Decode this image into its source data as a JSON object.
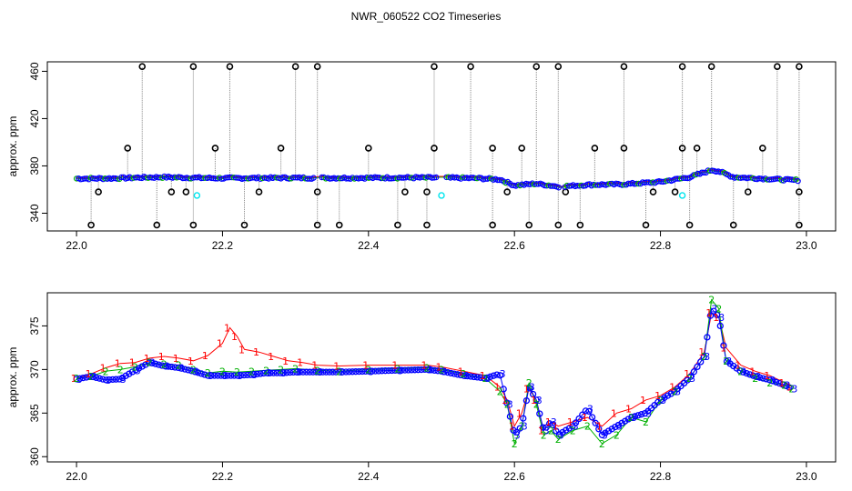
{
  "figure_title": "NWR_060522  CO2 Timeseries",
  "chart_data": [
    {
      "type": "scatter",
      "panel": "top",
      "title": "NWR_060522  CO2 Timeseries",
      "xlabel": "",
      "ylabel": "approx. ppm",
      "xlim": [
        21.96,
        23.04
      ],
      "ylim": [
        325,
        468
      ],
      "xticks": [
        22.0,
        22.2,
        22.4,
        22.6,
        22.8,
        23.0
      ],
      "xtick_labels": [
        "22.0",
        "22.2",
        "22.4",
        "22.6",
        "22.8",
        "23.0"
      ],
      "yticks": [
        340,
        380,
        420,
        460
      ],
      "ytick_labels": [
        "340",
        "380",
        "420",
        "460"
      ],
      "grid": false,
      "series_colors": {
        "black_markers": "#000000",
        "cyan_markers": "#00e5ee",
        "line_1": "#ff0000",
        "line_2": "#00b000",
        "line_3": "#0000ff",
        "spike_lines": "#888888"
      },
      "baseline_x": [
        22.0,
        22.05,
        22.09,
        22.12,
        22.16,
        22.2,
        22.25,
        22.3,
        22.33,
        22.4,
        22.45,
        22.5,
        22.55,
        22.58,
        22.6,
        22.63,
        22.66,
        22.7,
        22.75,
        22.8,
        22.84,
        22.87,
        22.88,
        22.9,
        22.95,
        22.98
      ],
      "baseline_y": [
        369.3,
        369.5,
        370.2,
        370.5,
        370.0,
        369.6,
        369.8,
        369.9,
        369.8,
        369.9,
        370.1,
        370.0,
        369.6,
        368.5,
        363.5,
        365.0,
        362.5,
        364.0,
        364.5,
        366.5,
        370.5,
        376.5,
        375.5,
        370.5,
        369.0,
        368.0
      ],
      "outlier_high_x": [
        22.09,
        22.16,
        22.21,
        22.3,
        22.33,
        22.49,
        22.54,
        22.63,
        22.66,
        22.75,
        22.83,
        22.87,
        22.96,
        22.99
      ],
      "outlier_high_y": [
        464,
        464,
        464,
        464,
        464,
        464,
        464,
        464,
        464,
        464,
        464,
        464,
        464,
        464
      ],
      "outlier_mid_x": [
        22.07,
        22.19,
        22.28,
        22.4,
        22.49,
        22.57,
        22.61,
        22.71,
        22.75,
        22.83,
        22.85,
        22.94
      ],
      "outlier_mid_y": [
        395,
        395,
        395,
        395,
        395,
        395,
        395,
        395,
        395,
        395,
        395,
        395
      ],
      "outlier_low_x": [
        22.03,
        22.13,
        22.15,
        22.25,
        22.33,
        22.45,
        22.48,
        22.59,
        22.67,
        22.79,
        22.82,
        22.92,
        22.99
      ],
      "outlier_low_y": [
        358,
        358,
        358,
        358,
        358,
        358,
        358,
        358,
        358,
        358,
        358,
        358,
        358
      ],
      "outlier_bottom_x": [
        22.02,
        22.11,
        22.16,
        22.23,
        22.33,
        22.36,
        22.44,
        22.48,
        22.57,
        22.62,
        22.66,
        22.69,
        22.78,
        22.84,
        22.9,
        22.99
      ],
      "outlier_bottom_y": [
        330,
        330,
        330,
        330,
        330,
        330,
        330,
        330,
        330,
        330,
        330,
        330,
        330,
        330,
        330,
        330
      ],
      "cyan_x": [
        22.165,
        22.5,
        22.83
      ],
      "cyan_y": [
        355,
        355,
        355
      ]
    },
    {
      "type": "line",
      "panel": "bottom",
      "title": "",
      "xlabel": "",
      "ylabel": "approx. ppm",
      "xlim": [
        21.96,
        23.04
      ],
      "ylim": [
        359.4,
        378.8
      ],
      "xticks": [
        22.0,
        22.2,
        22.4,
        22.6,
        22.8,
        23.0
      ],
      "xtick_labels": [
        "22.0",
        "22.2",
        "22.4",
        "22.6",
        "22.8",
        "23.0"
      ],
      "yticks": [
        360,
        365,
        370,
        375
      ],
      "ytick_labels": [
        "360",
        "365",
        "370",
        "375"
      ],
      "grid": false,
      "series": [
        {
          "name": "1",
          "color": "#ff0000",
          "x": [
            22.0,
            22.02,
            22.04,
            22.06,
            22.08,
            22.1,
            22.12,
            22.14,
            22.16,
            22.18,
            22.2,
            22.21,
            22.22,
            22.23,
            22.25,
            22.27,
            22.29,
            22.31,
            22.33,
            22.36,
            22.4,
            22.44,
            22.48,
            22.5,
            22.53,
            22.56,
            22.58,
            22.59,
            22.6,
            22.61,
            22.62,
            22.63,
            22.64,
            22.65,
            22.66,
            22.68,
            22.7,
            22.72,
            22.74,
            22.76,
            22.78,
            22.8,
            22.82,
            22.84,
            22.86,
            22.87,
            22.88,
            22.89,
            22.91,
            22.93,
            22.95,
            22.97,
            22.98
          ],
          "y": [
            369.0,
            369.5,
            370.2,
            370.7,
            370.8,
            371.3,
            371.5,
            371.3,
            371.0,
            371.6,
            373.0,
            374.8,
            373.8,
            372.3,
            372.0,
            371.5,
            371.0,
            370.8,
            370.5,
            370.4,
            370.5,
            370.5,
            370.5,
            370.3,
            369.8,
            369.3,
            368.0,
            366.5,
            363.5,
            365.0,
            367.8,
            366.5,
            363.0,
            364.0,
            363.5,
            364.0,
            364.5,
            363.5,
            365.0,
            365.5,
            366.5,
            367.0,
            368.0,
            369.5,
            372.0,
            376.5,
            376.0,
            372.5,
            370.5,
            369.8,
            369.3,
            368.5,
            368.0
          ]
        },
        {
          "name": "2",
          "color": "#00b000",
          "x": [
            22.0,
            22.02,
            22.04,
            22.06,
            22.08,
            22.1,
            22.12,
            22.14,
            22.16,
            22.18,
            22.2,
            22.22,
            22.24,
            22.26,
            22.28,
            22.3,
            22.33,
            22.36,
            22.4,
            22.44,
            22.48,
            22.5,
            22.53,
            22.56,
            22.58,
            22.59,
            22.6,
            22.61,
            22.62,
            22.63,
            22.64,
            22.65,
            22.66,
            22.68,
            22.7,
            22.72,
            22.74,
            22.76,
            22.78,
            22.8,
            22.82,
            22.84,
            22.86,
            22.87,
            22.88,
            22.89,
            22.91,
            22.93,
            22.95,
            22.97,
            22.98
          ],
          "y": [
            369.0,
            369.2,
            369.8,
            370.0,
            370.3,
            370.8,
            370.6,
            370.5,
            370.0,
            369.6,
            369.8,
            369.7,
            369.8,
            369.9,
            370.0,
            370.1,
            369.9,
            369.8,
            370.0,
            370.1,
            370.2,
            370.0,
            369.5,
            369.0,
            367.5,
            366.0,
            361.5,
            363.5,
            368.5,
            366.0,
            362.5,
            363.0,
            362.0,
            363.0,
            363.5,
            361.5,
            362.5,
            364.5,
            364.0,
            366.5,
            367.5,
            369.0,
            371.5,
            378.0,
            377.0,
            371.0,
            369.8,
            369.0,
            368.5,
            368.2,
            367.8
          ]
        },
        {
          "name": "3",
          "color": "#0000ff",
          "x": [
            22.0,
            22.02,
            22.04,
            22.06,
            22.08,
            22.1,
            22.12,
            22.14,
            22.16,
            22.18,
            22.2,
            22.22,
            22.24,
            22.26,
            22.28,
            22.3,
            22.33,
            22.36,
            22.4,
            22.44,
            22.48,
            22.5,
            22.53,
            22.56,
            22.58,
            22.59,
            22.6,
            22.61,
            22.62,
            22.63,
            22.64,
            22.65,
            22.66,
            22.68,
            22.7,
            22.72,
            22.74,
            22.76,
            22.78,
            22.8,
            22.82,
            22.84,
            22.86,
            22.87,
            22.88,
            22.89,
            22.91,
            22.93,
            22.95,
            22.97,
            22.98
          ],
          "y": [
            368.9,
            369.2,
            368.8,
            368.9,
            369.9,
            370.8,
            370.4,
            370.2,
            369.8,
            369.3,
            369.3,
            369.3,
            369.4,
            369.6,
            369.6,
            369.7,
            369.7,
            369.7,
            369.8,
            369.9,
            370.0,
            369.8,
            369.3,
            369.0,
            369.5,
            366.0,
            362.5,
            363.5,
            368.0,
            366.5,
            363.0,
            364.0,
            362.5,
            363.5,
            365.5,
            362.5,
            363.5,
            364.5,
            365.0,
            366.5,
            367.5,
            369.0,
            371.5,
            377.0,
            376.0,
            371.0,
            369.8,
            369.2,
            368.8,
            368.2,
            367.8
          ]
        }
      ]
    }
  ]
}
